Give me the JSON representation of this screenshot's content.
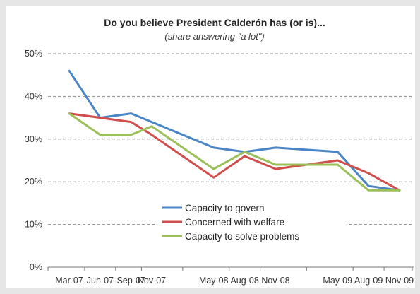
{
  "chart_data": {
    "type": "line",
    "title": "Do you believe President Calderón has (or is)...",
    "subtitle": "(share answering \"a lot\")",
    "x": [
      "Mar-07",
      "Jun-07",
      "Sep-07",
      "Nov-07",
      "May-08",
      "Aug-08",
      "Nov-08",
      "May-09",
      "Aug-09",
      "Nov-09"
    ],
    "x_positions": [
      0,
      3,
      6,
      8,
      14,
      17,
      20,
      26,
      29,
      32
    ],
    "ylim": [
      0,
      50
    ],
    "y_ticks": [
      0,
      10,
      20,
      30,
      40,
      50
    ],
    "y_tick_labels": [
      "0%",
      "10%",
      "20%",
      "30%",
      "40%",
      "50%"
    ],
    "grid": true,
    "legend_position": "inside-bottom-center",
    "series": [
      {
        "name": "Capacity to govern",
        "color": "#4a86c5",
        "values": [
          46,
          35,
          36,
          34,
          28,
          27,
          28,
          27,
          19,
          18
        ]
      },
      {
        "name": "Concerned with welfare",
        "color": "#cf4f4c",
        "values": [
          36,
          35,
          34,
          31,
          21,
          26,
          23,
          25,
          22,
          18
        ]
      },
      {
        "name": "Capacity to solve problems",
        "color": "#9bc059",
        "values": [
          36,
          31,
          31,
          33,
          23,
          27,
          24,
          24,
          18,
          18
        ]
      }
    ]
  }
}
